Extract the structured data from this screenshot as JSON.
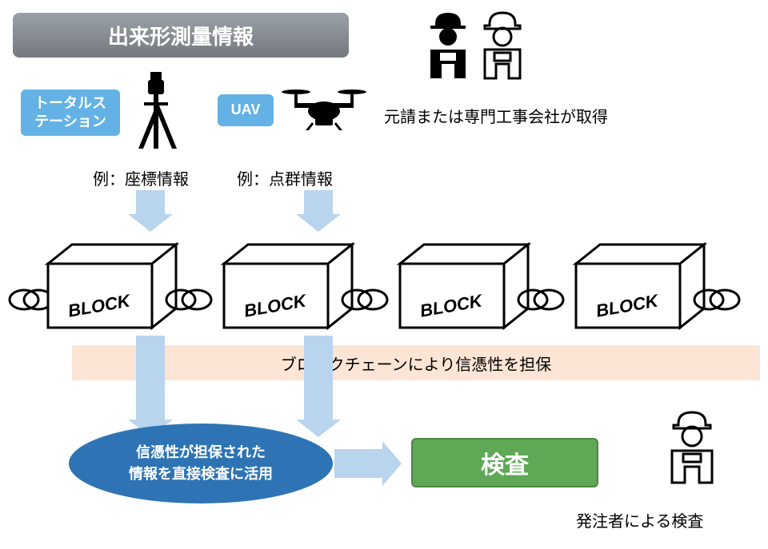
{
  "title": "出来形測量情報",
  "labels": {
    "totalStation": "トータルス\nテーション",
    "uav": "UAV",
    "contractor": "元請または専門工事会社が取得",
    "exCoord": "例：座標情報",
    "exPoint": "例：点群情報",
    "band": "ブロックチェーンにより信憑性を担保",
    "ellipse": "信憑性が担保された\n情報を直接検査に活用",
    "inspect": "検査",
    "inspector": "発注者による検査",
    "block": "BLOCK"
  },
  "colors": {
    "arrowFill": "#b9d4ed",
    "band": "#fce5d5",
    "blue": "#64b2e5",
    "ellipse": "#2e74b5",
    "green": "#5fa856"
  },
  "layout": {
    "blockCount": 4,
    "blockY": 300,
    "blockW": 160,
    "blockGap": 60
  }
}
